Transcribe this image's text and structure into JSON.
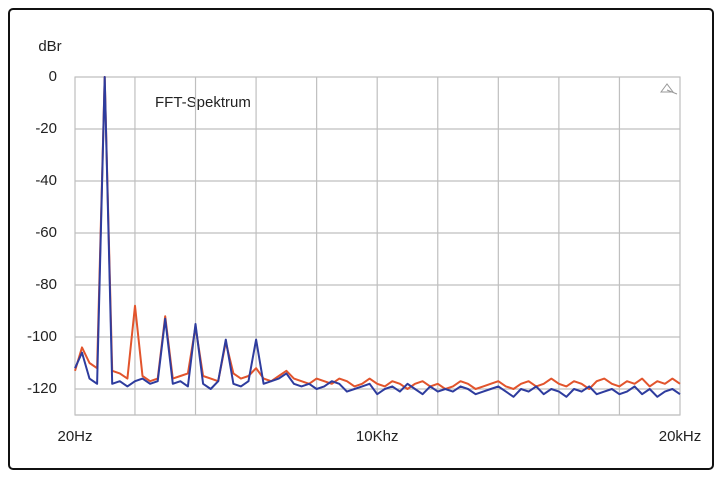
{
  "chart_data": {
    "type": "line",
    "title": "FFT-Spektrum",
    "y_label": "dBr",
    "x": [
      20,
      250,
      500,
      750,
      1000,
      1250,
      1500,
      1750,
      2000,
      2250,
      2500,
      2750,
      3000,
      3250,
      3500,
      3750,
      4000,
      4250,
      4500,
      4750,
      5000,
      5250,
      5500,
      5750,
      6000,
      6250,
      6500,
      6750,
      7000,
      7250,
      7500,
      7750,
      8000,
      8250,
      8500,
      8750,
      9000,
      9250,
      9500,
      9750,
      10000,
      10250,
      10500,
      10750,
      11000,
      11250,
      11500,
      11750,
      12000,
      12250,
      12500,
      12750,
      13000,
      13250,
      13500,
      13750,
      14000,
      14250,
      14500,
      14750,
      15000,
      15250,
      15500,
      15750,
      16000,
      16250,
      16500,
      16750,
      17000,
      17250,
      17500,
      17750,
      18000,
      18250,
      18500,
      18750,
      19000,
      19250,
      19500,
      19750,
      20000
    ],
    "series": [
      {
        "color": "#e2542c",
        "values": [
          -113,
          -104,
          -110,
          -112,
          0,
          -113,
          -114,
          -116,
          -88,
          -115,
          -117,
          -116,
          -92,
          -116,
          -115,
          -114,
          -96,
          -115,
          -116,
          -117,
          -102,
          -114,
          -116,
          -115,
          -112,
          -116,
          -117,
          -115,
          -113,
          -116,
          -117,
          -118,
          -116,
          -117,
          -118,
          -116,
          -117,
          -119,
          -118,
          -116,
          -118,
          -119,
          -117,
          -118,
          -120,
          -118,
          -117,
          -119,
          -118,
          -120,
          -119,
          -117,
          -118,
          -120,
          -119,
          -118,
          -117,
          -119,
          -120,
          -118,
          -117,
          -119,
          -118,
          -116,
          -118,
          -119,
          -117,
          -118,
          -120,
          -117,
          -116,
          -118,
          -119,
          -117,
          -118,
          -116,
          -119,
          -117,
          -118,
          -116,
          -118
        ]
      },
      {
        "color": "#2e3c9e",
        "values": [
          -112,
          -106,
          -116,
          -118,
          0,
          -118,
          -117,
          -119,
          -117,
          -116,
          -118,
          -117,
          -93,
          -118,
          -117,
          -119,
          -95,
          -118,
          -120,
          -117,
          -101,
          -118,
          -119,
          -117,
          -101,
          -118,
          -117,
          -116,
          -114,
          -118,
          -119,
          -118,
          -120,
          -119,
          -117,
          -118,
          -121,
          -120,
          -119,
          -118,
          -122,
          -120,
          -119,
          -121,
          -118,
          -120,
          -122,
          -119,
          -121,
          -120,
          -121,
          -119,
          -120,
          -122,
          -121,
          -120,
          -119,
          -121,
          -123,
          -120,
          -121,
          -119,
          -122,
          -120,
          -121,
          -123,
          -120,
          -121,
          -119,
          -122,
          -121,
          -120,
          -122,
          -121,
          -119,
          -122,
          -120,
          -123,
          -121,
          -120,
          -122
        ]
      }
    ],
    "xlim": [
      20,
      20000
    ],
    "ylim": [
      -130,
      0
    ],
    "xticks": [
      {
        "value": 20,
        "label": "20Hz"
      },
      {
        "value": 2000,
        "label": null
      },
      {
        "value": 4000,
        "label": null
      },
      {
        "value": 6000,
        "label": null
      },
      {
        "value": 8000,
        "label": null
      },
      {
        "value": 10000,
        "label": "10Khz"
      },
      {
        "value": 12000,
        "label": null
      },
      {
        "value": 14000,
        "label": null
      },
      {
        "value": 16000,
        "label": null
      },
      {
        "value": 18000,
        "label": null
      },
      {
        "value": 20000,
        "label": "20kHz"
      }
    ],
    "yticks": [
      0,
      -20,
      -40,
      -60,
      -80,
      -100,
      -120
    ],
    "grid": true
  }
}
